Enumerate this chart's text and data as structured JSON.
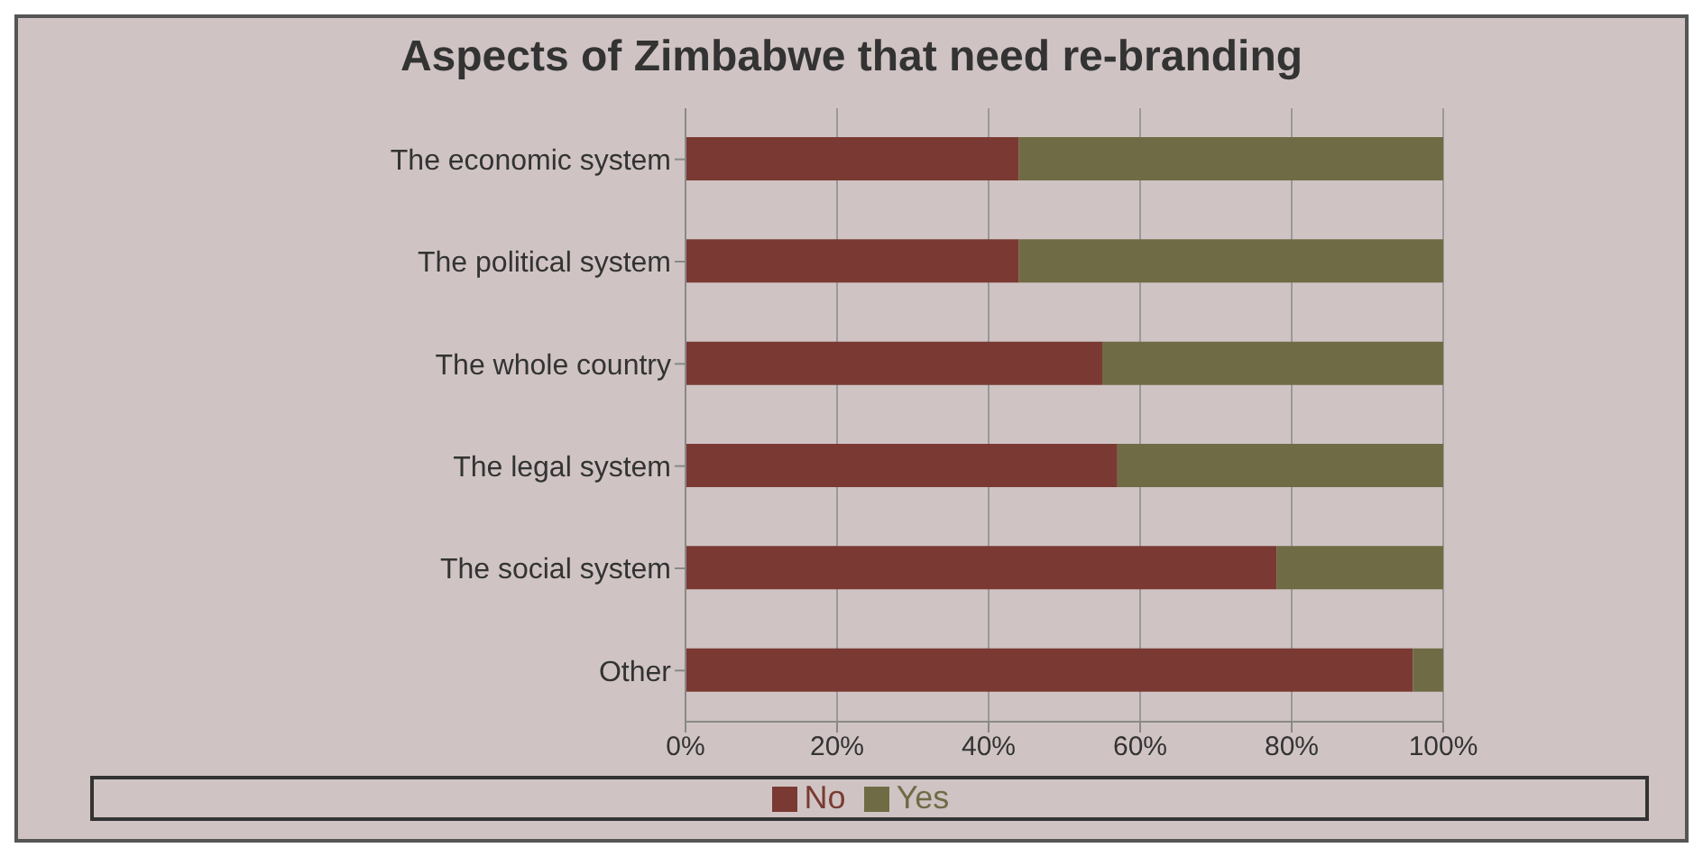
{
  "chart_data": {
    "type": "bar",
    "orientation": "horizontal",
    "stacked": true,
    "title": "Aspects of Zimbabwe that need re-branding",
    "categories": [
      "The economic system",
      "The political system",
      "The whole country",
      "The legal system",
      "The social system",
      "Other"
    ],
    "series": [
      {
        "name": "No",
        "color": "#7a3a33",
        "values": [
          44,
          44,
          55,
          57,
          78,
          96
        ]
      },
      {
        "name": "Yes",
        "color": "#6f6b45",
        "values": [
          56,
          56,
          45,
          43,
          22,
          4
        ]
      }
    ],
    "xlim": [
      0,
      100
    ],
    "xticks": [
      {
        "value": 0,
        "label": "0%"
      },
      {
        "value": 20,
        "label": "20%"
      },
      {
        "value": 40,
        "label": "40%"
      },
      {
        "value": 60,
        "label": "60%"
      },
      {
        "value": 80,
        "label": "80%"
      },
      {
        "value": 100,
        "label": "100%"
      }
    ],
    "grid": "x",
    "legend": "bottom"
  }
}
